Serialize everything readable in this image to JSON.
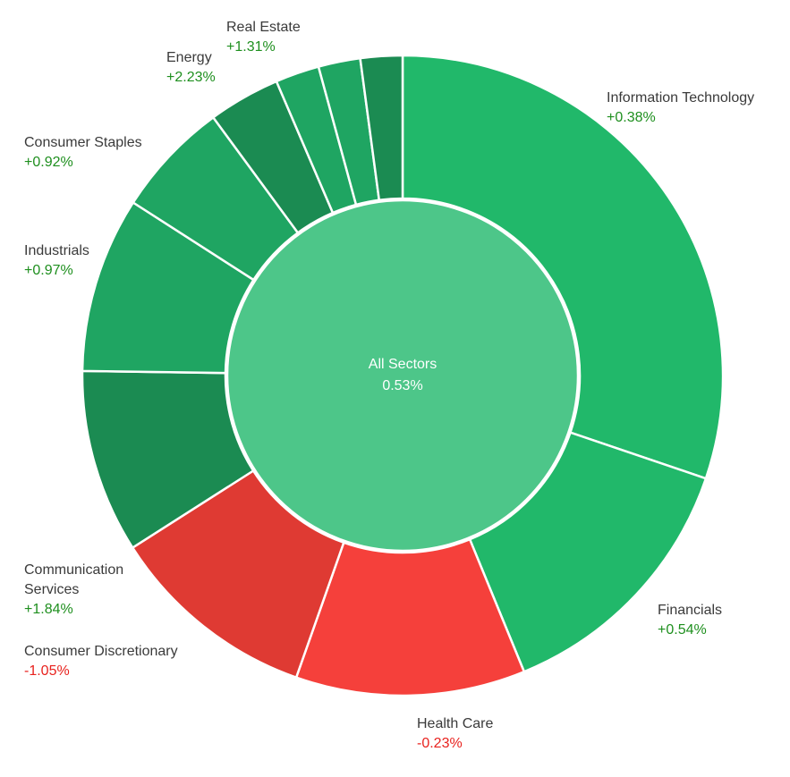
{
  "chart_data": {
    "type": "sunburst",
    "center": {
      "label": "All Sectors",
      "change": "0.53%"
    },
    "colors": {
      "green_light": "#21b86a",
      "green_mid": "#1fa562",
      "green_dark": "#1b8b52",
      "red_light": "#f5403b",
      "red_dark": "#df3a33",
      "center": "#4dc689",
      "positive_text": "#1e8f1e",
      "negative_text": "#e8221e"
    },
    "sectors": [
      {
        "name": "Information Technology",
        "change": "+0.38%",
        "value": 30.0,
        "color": "#21b86a"
      },
      {
        "name": "Financials",
        "change": "+0.54%",
        "value": 13.5,
        "color": "#21b86a"
      },
      {
        "name": "Health Care",
        "change": "-0.23%",
        "value": 11.5,
        "color": "#f5403b"
      },
      {
        "name": "Consumer Discretionary",
        "change": "-1.05%",
        "value": 10.5,
        "color": "#df3a33"
      },
      {
        "name": "Communication Services",
        "change": "+1.84%",
        "value": 9.2,
        "color": "#1b8b52"
      },
      {
        "name": "Industrials",
        "change": "+0.97%",
        "value": 8.8,
        "color": "#1fa562"
      },
      {
        "name": "Consumer Staples",
        "change": "+0.92%",
        "value": 5.8,
        "color": "#1fa562"
      },
      {
        "name": "Energy",
        "change": "+2.23%",
        "value": 3.6,
        "color": "#1b8b52"
      },
      {
        "name": "",
        "change": "",
        "value": 2.2,
        "color": "#1fa562"
      },
      {
        "name": "",
        "change": "",
        "value": 2.1,
        "color": "#1fa562"
      },
      {
        "name": "Real Estate",
        "change": "+1.31%",
        "value": 2.1,
        "color": "#1b8b52"
      }
    ]
  }
}
